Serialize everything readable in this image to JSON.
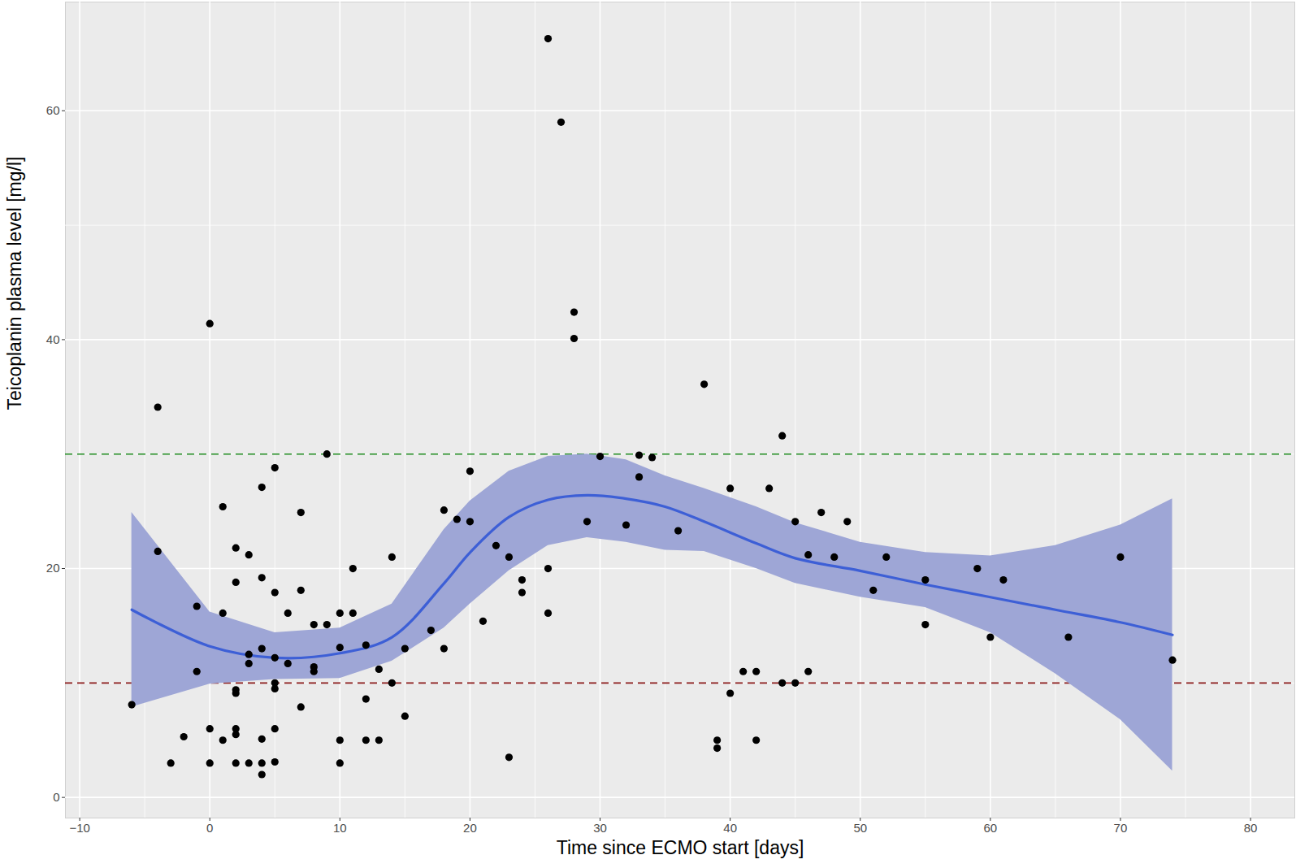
{
  "chart_data": {
    "type": "scatter",
    "x_label": "Time since ECMO start [days]",
    "y_label": "Teicoplanin plasma level [mg/l]",
    "xlim": [
      -11.1,
      83.4
    ],
    "ylim": [
      -1.8,
      69.5
    ],
    "xticks": [
      -10,
      0,
      10,
      20,
      30,
      40,
      50,
      60,
      70,
      80
    ],
    "yticks": [
      0,
      20,
      40,
      60
    ],
    "grid": true,
    "points": {
      "color": "#000000",
      "marker": "circle",
      "x": [
        -6,
        -4,
        -4,
        -3,
        -2,
        -1,
        -1,
        0,
        0,
        0,
        1,
        1,
        1,
        2,
        2,
        2,
        2,
        2,
        2,
        2,
        3,
        3,
        3,
        3,
        4,
        4,
        4,
        4,
        4,
        4,
        5,
        5,
        5,
        5,
        5,
        5,
        5,
        6,
        6,
        7,
        7,
        7,
        8,
        8,
        8,
        9,
        9,
        10,
        10,
        10,
        10,
        11,
        11,
        12,
        12,
        12,
        13,
        13,
        14,
        14,
        15,
        15,
        17,
        18,
        18,
        19,
        20,
        20,
        21,
        22,
        23,
        23,
        24,
        24,
        26,
        26,
        26,
        27,
        28,
        28,
        29,
        30,
        32,
        33,
        33,
        34,
        36,
        38,
        39,
        39,
        40,
        40,
        41,
        42,
        42,
        43,
        44,
        44,
        45,
        45,
        46,
        46,
        47,
        48,
        49,
        51,
        52,
        55,
        55,
        59,
        60,
        61,
        66,
        70,
        74
      ],
      "values": [
        8.1,
        34.1,
        21.5,
        3.0,
        5.3,
        16.7,
        11.0,
        41.4,
        6.0,
        3.0,
        25.4,
        16.1,
        5.0,
        21.8,
        18.8,
        9.4,
        9.1,
        6.0,
        5.5,
        3.0,
        21.2,
        12.5,
        11.7,
        3.0,
        27.1,
        19.2,
        13.0,
        5.1,
        3.0,
        2.0,
        28.8,
        17.9,
        12.2,
        10.0,
        9.5,
        6.0,
        3.1,
        16.1,
        11.7,
        24.9,
        18.1,
        7.9,
        15.1,
        11.4,
        11.0,
        30.0,
        15.1,
        16.1,
        13.1,
        5.0,
        3.0,
        20.0,
        16.1,
        13.3,
        8.6,
        5.0,
        11.2,
        5.0,
        21.0,
        10.0,
        13.0,
        7.1,
        14.6,
        13.0,
        25.1,
        24.3,
        28.5,
        24.1,
        15.4,
        22.0,
        21.0,
        3.5,
        19.0,
        17.9,
        66.3,
        20.0,
        16.1,
        59.0,
        42.4,
        40.1,
        24.1,
        29.8,
        23.8,
        29.9,
        28.0,
        29.7,
        23.3,
        36.1,
        5.0,
        4.3,
        27.0,
        9.1,
        11.0,
        11.0,
        5.0,
        27.0,
        31.6,
        10.0,
        24.1,
        10.0,
        21.2,
        11.0,
        24.9,
        21.0,
        24.1,
        18.1,
        21.0,
        19.0,
        15.1,
        20.0,
        14.0,
        19.0,
        14.0,
        21.0,
        12.0
      ]
    },
    "smooth": {
      "color": "#3d5fd6",
      "line_style": "solid",
      "x": [
        -6,
        0,
        5,
        10,
        14,
        18,
        20,
        23,
        26,
        29,
        32,
        35,
        38,
        42,
        45,
        50,
        55,
        60,
        65,
        70,
        74
      ],
      "values": [
        16.4,
        13.2,
        12.2,
        12.6,
        14.0,
        18.7,
        21.4,
        24.5,
        26.0,
        26.4,
        26.1,
        25.4,
        24.1,
        22.2,
        20.9,
        19.8,
        18.6,
        17.5,
        16.4,
        15.3,
        14.2
      ]
    },
    "band": {
      "color": "#9ea6d6",
      "x": [
        -6,
        0,
        5,
        10,
        14,
        18,
        20,
        23,
        26,
        29,
        32,
        35,
        38,
        42,
        45,
        50,
        55,
        60,
        65,
        70,
        74
      ],
      "lower": [
        7.9,
        9.9,
        10.3,
        10.4,
        11.9,
        14.8,
        16.9,
        19.8,
        22.0,
        22.7,
        22.3,
        21.6,
        21.5,
        20.0,
        18.7,
        17.5,
        16.6,
        14.4,
        10.8,
        6.8,
        2.3
      ],
      "upper": [
        24.9,
        16.2,
        14.4,
        14.8,
        16.9,
        23.4,
        25.9,
        28.5,
        29.8,
        30.0,
        29.5,
        28.1,
        27.0,
        25.4,
        24.0,
        22.3,
        21.4,
        21.1,
        22.0,
        23.8,
        26.1
      ]
    },
    "reference_lines": [
      {
        "value": 30,
        "color": "#1f8c1f",
        "line_style": "dashed"
      },
      {
        "value": 10,
        "color": "#8b1a1a",
        "line_style": "dashed"
      }
    ]
  }
}
